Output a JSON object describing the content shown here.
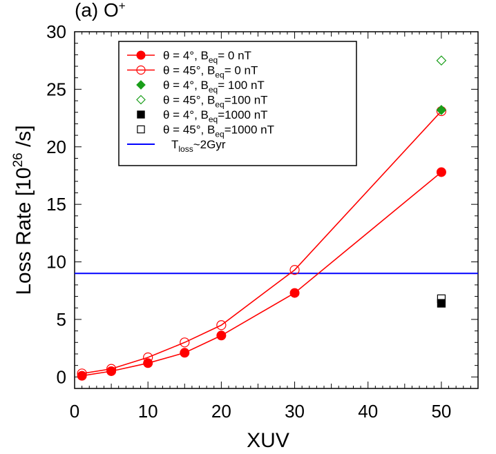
{
  "chart_data": {
    "type": "scatter",
    "panel_label": "(a) O",
    "panel_label_sup": "+",
    "xlabel": "XUV",
    "ylabel_main": "Loss Rate [10",
    "ylabel_sup": "26",
    "ylabel_unit": " /s]",
    "xlim": [
      0,
      55
    ],
    "ylim": [
      -1,
      30
    ],
    "xticks": [
      0,
      10,
      20,
      30,
      40,
      50
    ],
    "yticks": [
      0,
      5,
      10,
      15,
      20,
      25,
      30
    ],
    "series": [
      {
        "name": "θ = 4°, B_eq= 0 nT",
        "legend": {
          "pre": "θ = 4°, B",
          "sub": "eq",
          "post": "= 0 nT"
        },
        "color": "#ff0000",
        "marker": "circle-filled",
        "line": true,
        "x": [
          1,
          5,
          10,
          15,
          20,
          30,
          50
        ],
        "y": [
          0.1,
          0.5,
          1.2,
          2.1,
          3.6,
          7.3,
          17.8
        ]
      },
      {
        "name": "θ = 45°, B_eq= 0 nT",
        "legend": {
          "pre": "θ = 45°, B",
          "sub": "eq",
          "post": "= 0 nT"
        },
        "color": "#ff0000",
        "marker": "circle-open",
        "line": true,
        "x": [
          1,
          5,
          10,
          15,
          20,
          30,
          50
        ],
        "y": [
          0.3,
          0.7,
          1.7,
          3.0,
          4.5,
          9.3,
          23.1
        ]
      },
      {
        "name": "θ = 4°, B_eq= 100 nT",
        "legend": {
          "pre": "θ = 4°, B",
          "sub": "eq",
          "post": "= 100 nT"
        },
        "color": "#1a9e1a",
        "marker": "diamond-filled",
        "line": false,
        "x": [
          50
        ],
        "y": [
          23.2
        ]
      },
      {
        "name": "θ = 45°, B_eq=100 nT",
        "legend": {
          "pre": "θ = 45°, B",
          "sub": "eq",
          "post": "=100 nT"
        },
        "color": "#1a9e1a",
        "marker": "diamond-open",
        "line": false,
        "x": [
          50
        ],
        "y": [
          27.5
        ]
      },
      {
        "name": "θ = 4°, B_eq=1000 nT",
        "legend": {
          "pre": "θ = 4°, B",
          "sub": "eq",
          "post": "=1000 nT"
        },
        "color": "#000000",
        "marker": "square-filled",
        "line": false,
        "x": [
          50
        ],
        "y": [
          6.4
        ]
      },
      {
        "name": "θ = 45°, B_eq=1000 nT",
        "legend": {
          "pre": "θ = 45°, B",
          "sub": "eq",
          "post": "=1000 nT"
        },
        "color": "#000000",
        "marker": "square-open",
        "line": false,
        "x": [
          50
        ],
        "y": [
          6.8
        ]
      }
    ],
    "reference_line": {
      "name": "T_loss~2Gyr",
      "legend": {
        "pre": "T",
        "sub": "loss",
        "post": "~2Gyr"
      },
      "color": "#0000ff",
      "y": 9.0
    },
    "legend_position": "top-left"
  }
}
